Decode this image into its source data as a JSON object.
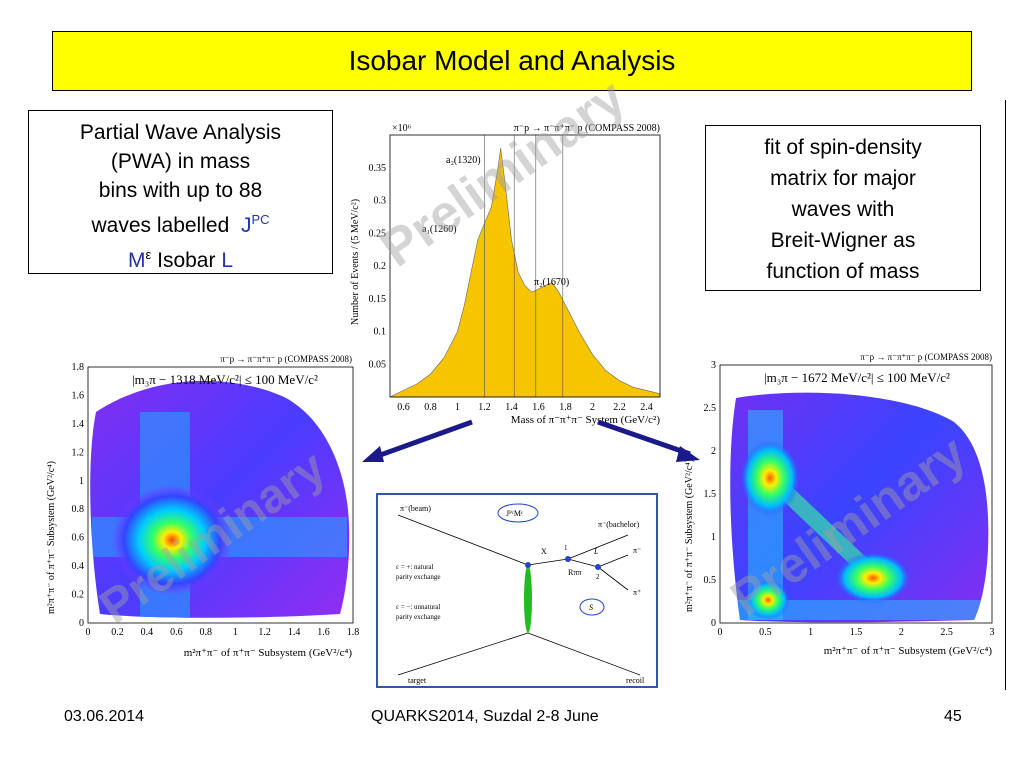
{
  "slide": {
    "title": "Isobar Model and Analysis",
    "left_box": {
      "line1": "Partial Wave Analysis",
      "line2": "(PWA) in mass",
      "line3": "bins with up to 88",
      "line4_prefix": "waves labelled",
      "jpc": "J",
      "pc": "PC",
      "m": "M",
      "eps": "ε",
      "isobar": "Isobar",
      "l": "L"
    },
    "right_box": {
      "line1": "fit of spin-density",
      "line2": "matrix for major",
      "line3": "waves with",
      "line4": "Breit-Wigner as",
      "line5": "function of mass"
    },
    "footer": {
      "date": "03.06.2014",
      "conference": "QUARKS2014, Suzdal 2-8 June",
      "page": "45"
    },
    "watermark": "Preliminary"
  },
  "chart_data": [
    {
      "type": "area",
      "header": "π⁻p → π⁻π⁺π⁻ p (COMPASS 2008)",
      "exponent": "×10⁶",
      "xlabel": "Mass of π⁻π⁺π⁻ System (GeV/c²)",
      "ylabel": "Number of Events / (5 MeV/c²)",
      "xlim": [
        0.5,
        2.5
      ],
      "ylim": [
        0,
        0.4
      ],
      "xticks": [
        "0.6",
        "0.8",
        "1",
        "1.2",
        "1.4",
        "1.6",
        "1.8",
        "2",
        "2.2",
        "2.4"
      ],
      "yticks": [
        "0.05",
        "0.1",
        "0.15",
        "0.2",
        "0.25",
        "0.3",
        "0.35"
      ],
      "annotations": [
        "a₂(1320)",
        "a₁(1260)",
        "π₂(1670)"
      ],
      "color": "#f7c400",
      "x": [
        0.5,
        0.6,
        0.7,
        0.8,
        0.9,
        1.0,
        1.05,
        1.1,
        1.15,
        1.2,
        1.25,
        1.3,
        1.32,
        1.35,
        1.4,
        1.45,
        1.5,
        1.55,
        1.6,
        1.65,
        1.7,
        1.75,
        1.8,
        1.9,
        2.0,
        2.1,
        2.2,
        2.3,
        2.4,
        2.5
      ],
      "y": [
        0.0,
        0.01,
        0.02,
        0.035,
        0.06,
        0.1,
        0.14,
        0.19,
        0.24,
        0.265,
        0.29,
        0.35,
        0.38,
        0.33,
        0.24,
        0.19,
        0.17,
        0.16,
        0.165,
        0.17,
        0.175,
        0.16,
        0.14,
        0.1,
        0.065,
        0.04,
        0.025,
        0.015,
        0.01,
        0.005
      ]
    },
    {
      "type": "heatmap",
      "header": "π⁻p → π⁻π⁺π⁻ p (COMPASS 2008)",
      "cut": "|m₃π − 1318 MeV/c²| ≤ 100 MeV/c²",
      "xlabel": "m²π⁺π⁻ of π⁺π⁻ Subsystem (GeV²/c⁴)",
      "ylabel": "m²π⁺π⁻ of π⁺π⁻ Subsystem (GeV²/c⁴)",
      "xticks": [
        "0",
        "0.2",
        "0.4",
        "0.6",
        "0.8",
        "1",
        "1.2",
        "1.4",
        "1.6",
        "1.8"
      ],
      "yticks": [
        "0",
        "0.2",
        "0.4",
        "0.6",
        "0.8",
        "1",
        "1.2",
        "1.4",
        "1.6",
        "1.8"
      ]
    },
    {
      "type": "heatmap",
      "header": "π⁻p → π⁻π⁺π⁻ p (COMPASS 2008)",
      "cut": "|m₃π − 1672 MeV/c²| ≤ 100 MeV/c²",
      "xlabel": "m²π⁺π⁻ of π⁺π⁻ Subsystem (GeV²/c⁴)",
      "ylabel": "m²π⁺π⁻ of π⁺π⁻ Subsystem (GeV²/c⁴)",
      "xticks": [
        "0",
        "0.5",
        "1",
        "1.5",
        "2",
        "2.5",
        "3"
      ],
      "yticks": [
        "0",
        "0.5",
        "1",
        "1.5",
        "2",
        "2.5",
        "3"
      ]
    }
  ],
  "diagram": {
    "beam": "π⁻(beam)",
    "jpcm": "JᴾᶜMᵋ",
    "x": "X",
    "bachelor": "π⁻(bachelor)",
    "l": "L",
    "pim": "π⁻",
    "pip": "π⁺",
    "r": "Rππ",
    "s": "S",
    "one": "1",
    "two": "2",
    "nat1": "ε = +: natural",
    "nat2": "parity exchange",
    "unnat1": "ε = −: unnatural",
    "unnat2": "parity exchange",
    "target": "target",
    "recoil": "recoil"
  }
}
